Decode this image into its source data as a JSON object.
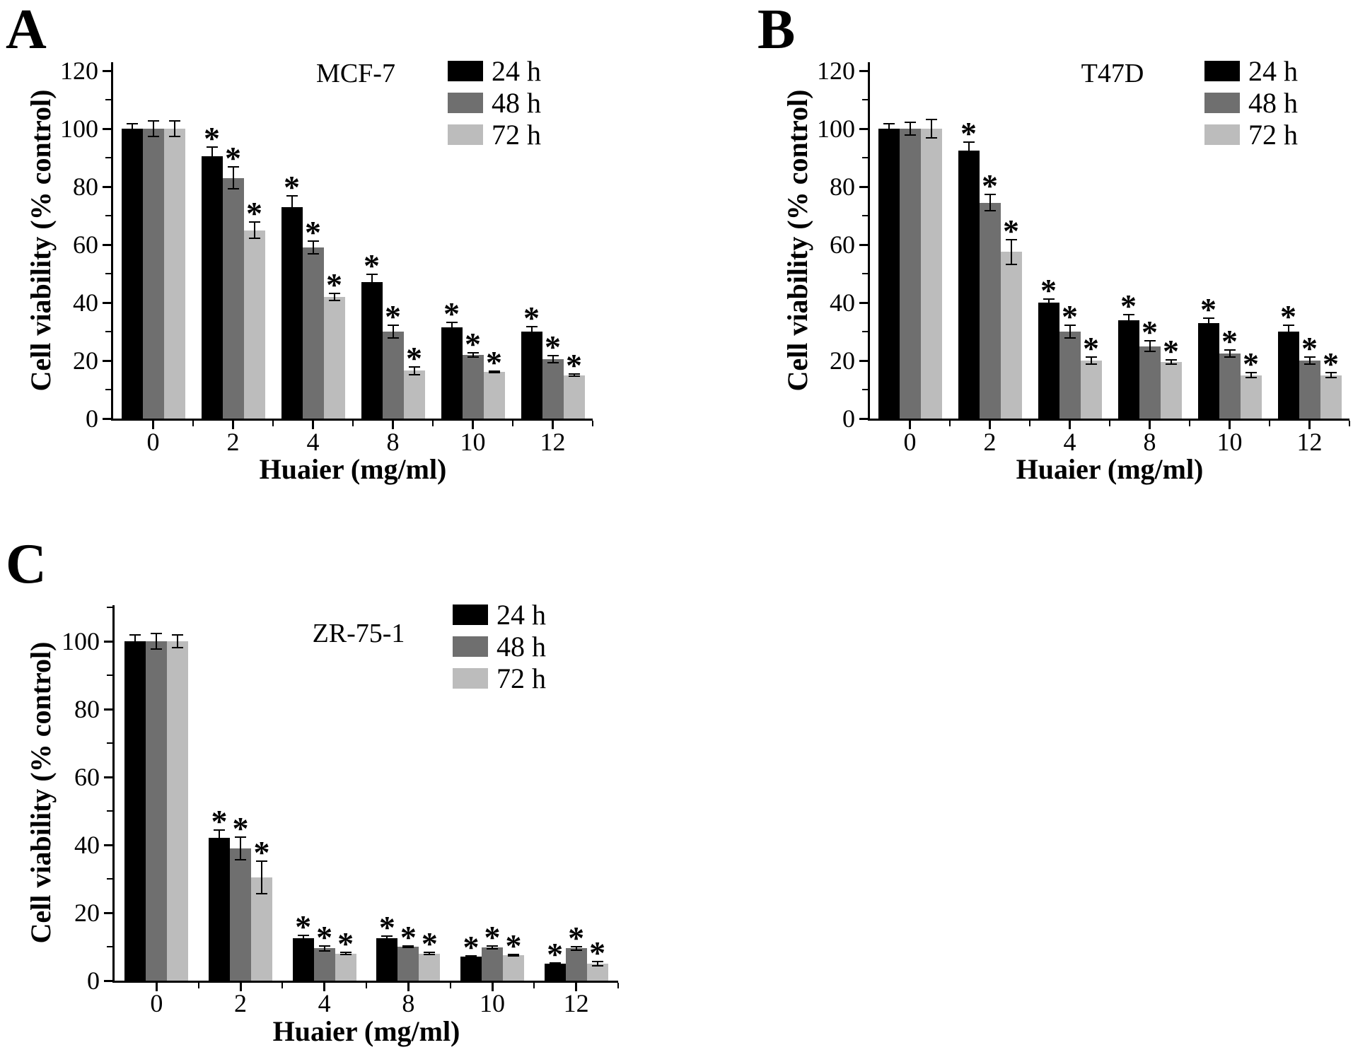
{
  "figure": {
    "background": "#ffffff",
    "significance_marker": "*",
    "series_colors": {
      "24 h": "#000000",
      "48 h": "#6f6f6f",
      "72 h": "#bcbcbc"
    }
  },
  "chart_data": [
    {
      "type": "bar",
      "panel_letter": "A",
      "title": "MCF-7",
      "xlabel": "Huaier (mg/ml)",
      "ylabel": "Cell viability (% control)",
      "categories": [
        "0",
        "2",
        "4",
        "8",
        "10",
        "12"
      ],
      "y_ticks": [
        0,
        20,
        40,
        60,
        80,
        100,
        120
      ],
      "y_minor_ticks": [
        10,
        30,
        50,
        70,
        90,
        110
      ],
      "ylim": [
        0,
        123
      ],
      "grid": false,
      "legend_position": "top-right",
      "legend_labels": [
        "24 h",
        "48 h",
        "72 h"
      ],
      "significance_marker": "*",
      "series": [
        {
          "name": "24 h",
          "color": "#000000",
          "values": [
            100,
            90.5,
            73,
            47,
            31.5,
            30
          ],
          "errors": [
            2,
            3.5,
            4,
            3,
            2,
            2
          ],
          "starred": [
            false,
            true,
            true,
            true,
            true,
            true
          ]
        },
        {
          "name": "48 h",
          "color": "#6f6f6f",
          "values": [
            100,
            83,
            59,
            30,
            22,
            20.5
          ],
          "errors": [
            3,
            4,
            2.5,
            2.5,
            1,
            1.5
          ],
          "starred": [
            false,
            true,
            true,
            true,
            true,
            true
          ]
        },
        {
          "name": "72 h",
          "color": "#bcbcbc",
          "values": [
            100,
            65,
            42,
            16.5,
            16,
            15
          ],
          "errors": [
            3,
            3,
            1.5,
            1.5,
            0.5,
            0.5
          ],
          "starred": [
            false,
            true,
            true,
            true,
            true,
            true
          ]
        }
      ]
    },
    {
      "type": "bar",
      "panel_letter": "B",
      "title": "T47D",
      "xlabel": "Huaier (mg/ml)",
      "ylabel": "Cell viability (% control)",
      "categories": [
        "0",
        "2",
        "4",
        "8",
        "10",
        "12"
      ],
      "y_ticks": [
        0,
        20,
        40,
        60,
        80,
        100,
        120
      ],
      "y_minor_ticks": [
        10,
        30,
        50,
        70,
        90,
        110
      ],
      "ylim": [
        0,
        123
      ],
      "grid": false,
      "legend_position": "top-right",
      "legend_labels": [
        "24 h",
        "48 h",
        "72 h"
      ],
      "significance_marker": "*",
      "series": [
        {
          "name": "24 h",
          "color": "#000000",
          "values": [
            100,
            92.5,
            40,
            34,
            33,
            30
          ],
          "errors": [
            2,
            3,
            1.5,
            2,
            2,
            2.5
          ],
          "starred": [
            false,
            true,
            true,
            true,
            true,
            true
          ]
        },
        {
          "name": "48 h",
          "color": "#6f6f6f",
          "values": [
            100,
            74.5,
            30,
            25,
            22.5,
            20
          ],
          "errors": [
            2.5,
            3,
            2.5,
            2,
            1.5,
            1.5
          ],
          "starred": [
            false,
            true,
            true,
            true,
            true,
            true
          ]
        },
        {
          "name": "72 h",
          "color": "#bcbcbc",
          "values": [
            100,
            57.5,
            20,
            19.5,
            15,
            15
          ],
          "errors": [
            3.5,
            4.5,
            1.5,
            1,
            1,
            1
          ],
          "starred": [
            false,
            true,
            true,
            true,
            true,
            true
          ]
        }
      ]
    },
    {
      "type": "bar",
      "panel_letter": "C",
      "title": "ZR-75-1",
      "xlabel": "Huaier (mg/ml)",
      "ylabel": "Cell viability (% control)",
      "categories": [
        "0",
        "2",
        "4",
        "8",
        "10",
        "12"
      ],
      "y_ticks": [
        0,
        20,
        40,
        60,
        80,
        100
      ],
      "y_minor_ticks": [
        10,
        30,
        50,
        70,
        90,
        110
      ],
      "ylim": [
        0,
        110
      ],
      "grid": false,
      "legend_position": "top-right",
      "legend_labels": [
        "24 h",
        "48 h",
        "72 h"
      ],
      "significance_marker": "*",
      "series": [
        {
          "name": "24 h",
          "color": "#000000",
          "values": [
            100,
            42,
            12.5,
            12.5,
            7,
            5
          ],
          "errors": [
            2,
            2.5,
            1,
            0.8,
            0.5,
            0.5
          ],
          "starred": [
            false,
            true,
            true,
            true,
            true,
            true
          ]
        },
        {
          "name": "48 h",
          "color": "#6f6f6f",
          "values": [
            100,
            39,
            9.5,
            10,
            9.8,
            9.5
          ],
          "errors": [
            2.5,
            3.5,
            1,
            0.5,
            0.6,
            0.7
          ],
          "starred": [
            false,
            true,
            true,
            true,
            true,
            true
          ]
        },
        {
          "name": "72 h",
          "color": "#bcbcbc",
          "values": [
            100,
            30.5,
            8,
            8,
            7.5,
            5
          ],
          "errors": [
            2,
            5,
            0.5,
            0.5,
            0.5,
            0.8
          ],
          "starred": [
            false,
            true,
            true,
            true,
            true,
            true
          ]
        }
      ]
    }
  ]
}
